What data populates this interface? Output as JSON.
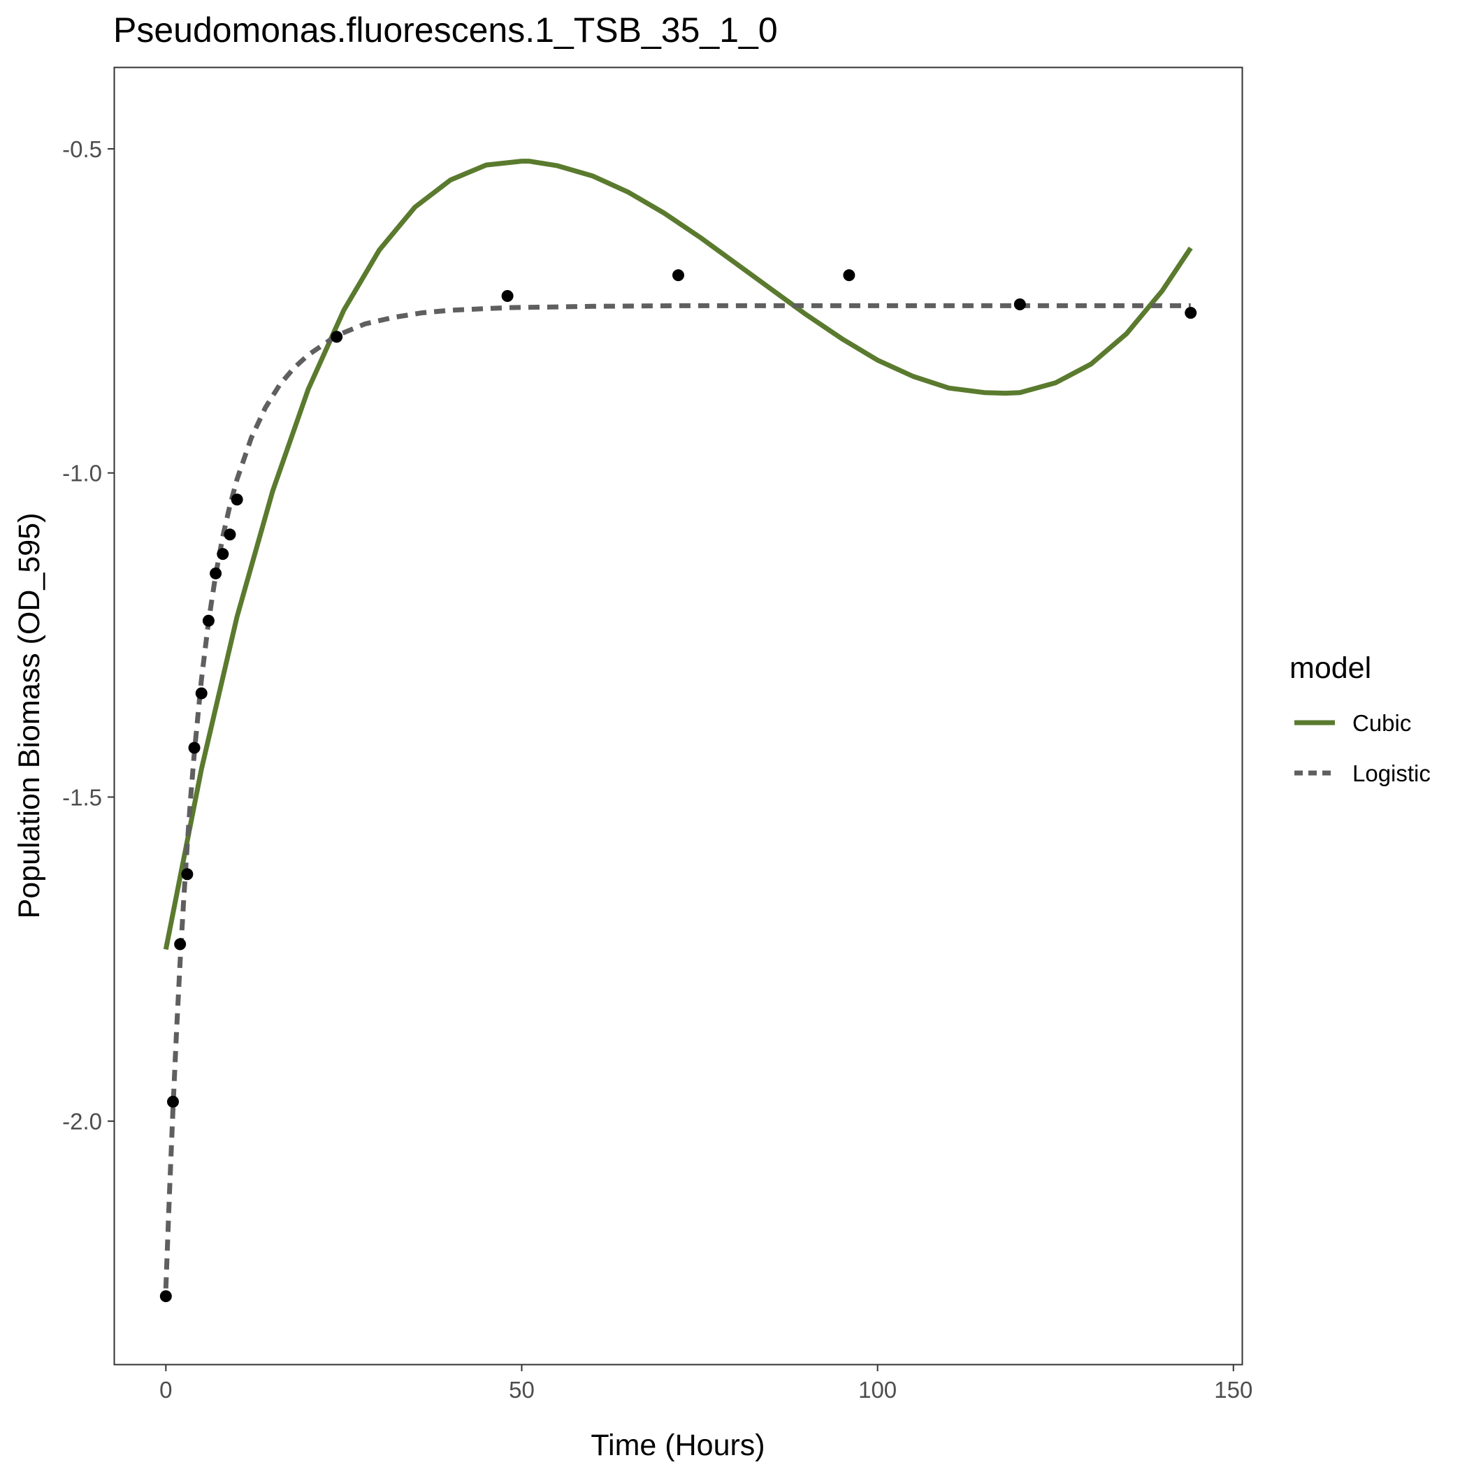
{
  "chart_data": {
    "type": "line",
    "title": "Pseudomonas.fluorescens.1_TSB_35_1_0",
    "xlabel": "Time (Hours)",
    "ylabel": "Population Biomass (OD_595)",
    "xlim": [
      -7.2,
      151.2
    ],
    "ylim": [
      -2.375,
      -0.375
    ],
    "x_ticks": [
      0,
      50,
      100,
      150
    ],
    "x_tick_labels": [
      "0",
      "50",
      "100",
      "150"
    ],
    "y_ticks": [
      -2.0,
      -1.5,
      -1.0,
      -0.5
    ],
    "y_tick_labels": [
      "-2.0",
      "-1.5",
      "-1.0",
      "-0.5"
    ],
    "grid": false,
    "legend": {
      "title": "model",
      "position": "right",
      "entries": [
        {
          "label": "Cubic",
          "color": "#5a7a2e",
          "linestyle": "solid"
        },
        {
          "label": "Logistic",
          "color": "#5f5f5f",
          "linestyle": "dashed"
        }
      ]
    },
    "points": {
      "color": "#000000",
      "x": [
        0,
        1,
        2,
        3,
        4,
        5,
        6,
        7,
        8,
        9,
        10,
        24,
        48,
        72,
        96,
        120,
        144
      ],
      "y": [
        -2.27,
        -1.97,
        -1.727,
        -1.619,
        -1.424,
        -1.34,
        -1.228,
        -1.155,
        -1.125,
        -1.095,
        -1.041,
        -0.79,
        -0.727,
        -0.695,
        -0.695,
        -0.74,
        -0.753
      ]
    },
    "series": [
      {
        "name": "Cubic",
        "color": "#5a7a2e",
        "style": "solid",
        "x": [
          0,
          5,
          10,
          15,
          20,
          25,
          30,
          35,
          40,
          45,
          50,
          51,
          55,
          60,
          65,
          70,
          75,
          80,
          85,
          90,
          95,
          100,
          105,
          110,
          115,
          118,
          120,
          125,
          130,
          135,
          140,
          144
        ],
        "y": [
          -1.735,
          -1.457,
          -1.222,
          -1.028,
          -0.871,
          -0.749,
          -0.656,
          -0.59,
          -0.548,
          -0.525,
          -0.519,
          -0.519,
          -0.526,
          -0.542,
          -0.567,
          -0.599,
          -0.636,
          -0.676,
          -0.716,
          -0.756,
          -0.793,
          -0.826,
          -0.851,
          -0.869,
          -0.876,
          -0.877,
          -0.876,
          -0.861,
          -0.832,
          -0.785,
          -0.719,
          -0.653
        ]
      },
      {
        "name": "Logistic",
        "color": "#5f5f5f",
        "style": "dashed",
        "x": [
          0,
          0.5,
          1,
          1.5,
          2,
          2.5,
          3,
          3.5,
          4,
          5,
          6,
          7,
          8,
          9,
          10,
          12,
          14,
          16,
          18,
          20,
          24,
          28,
          32,
          36,
          40,
          48,
          60,
          72,
          90,
          110,
          130,
          144
        ],
        "y": [
          -2.258,
          -2.113,
          -1.981,
          -1.861,
          -1.754,
          -1.659,
          -1.574,
          -1.498,
          -1.431,
          -1.319,
          -1.229,
          -1.157,
          -1.098,
          -1.05,
          -1.01,
          -0.946,
          -0.899,
          -0.864,
          -0.838,
          -0.818,
          -0.788,
          -0.77,
          -0.76,
          -0.753,
          -0.749,
          -0.745,
          -0.743,
          -0.742,
          -0.742,
          -0.742,
          -0.742,
          -0.742
        ]
      }
    ]
  }
}
